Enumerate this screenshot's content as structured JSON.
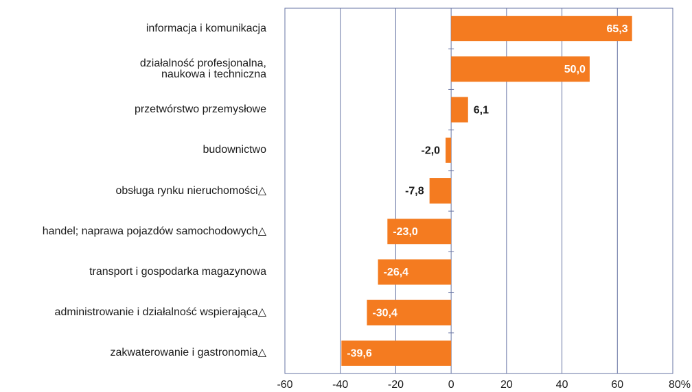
{
  "chart_data": {
    "type": "barh",
    "categories": [
      "informacja i komunikacja",
      "działalność profesjonalna,\nnaukowa i techniczna",
      "przetwórstwo przemysłowe",
      "budownictwo",
      "obsługa rynku nieruchomości△",
      "handel; naprawa pojazdów samochodowych△",
      "transport i gospodarka magazynowa",
      "administrowanie i działalność wspierająca△",
      "zakwaterowanie i gastronomia△"
    ],
    "values": [
      65.3,
      50.0,
      6.1,
      -2.0,
      -7.8,
      -23.0,
      -26.4,
      -30.4,
      -39.6
    ],
    "value_labels": [
      "65,3",
      "50,0",
      "6,1",
      "-2,0",
      "-7,8",
      "-23,0",
      "-26,4",
      "-30,4",
      "-39,6"
    ],
    "color": "#f47b20",
    "xlim": [
      -60,
      80
    ],
    "xticks": [
      -60,
      -40,
      -20,
      0,
      20,
      40,
      60,
      {
        "value": 80,
        "label": "80%"
      }
    ],
    "grid": true
  }
}
